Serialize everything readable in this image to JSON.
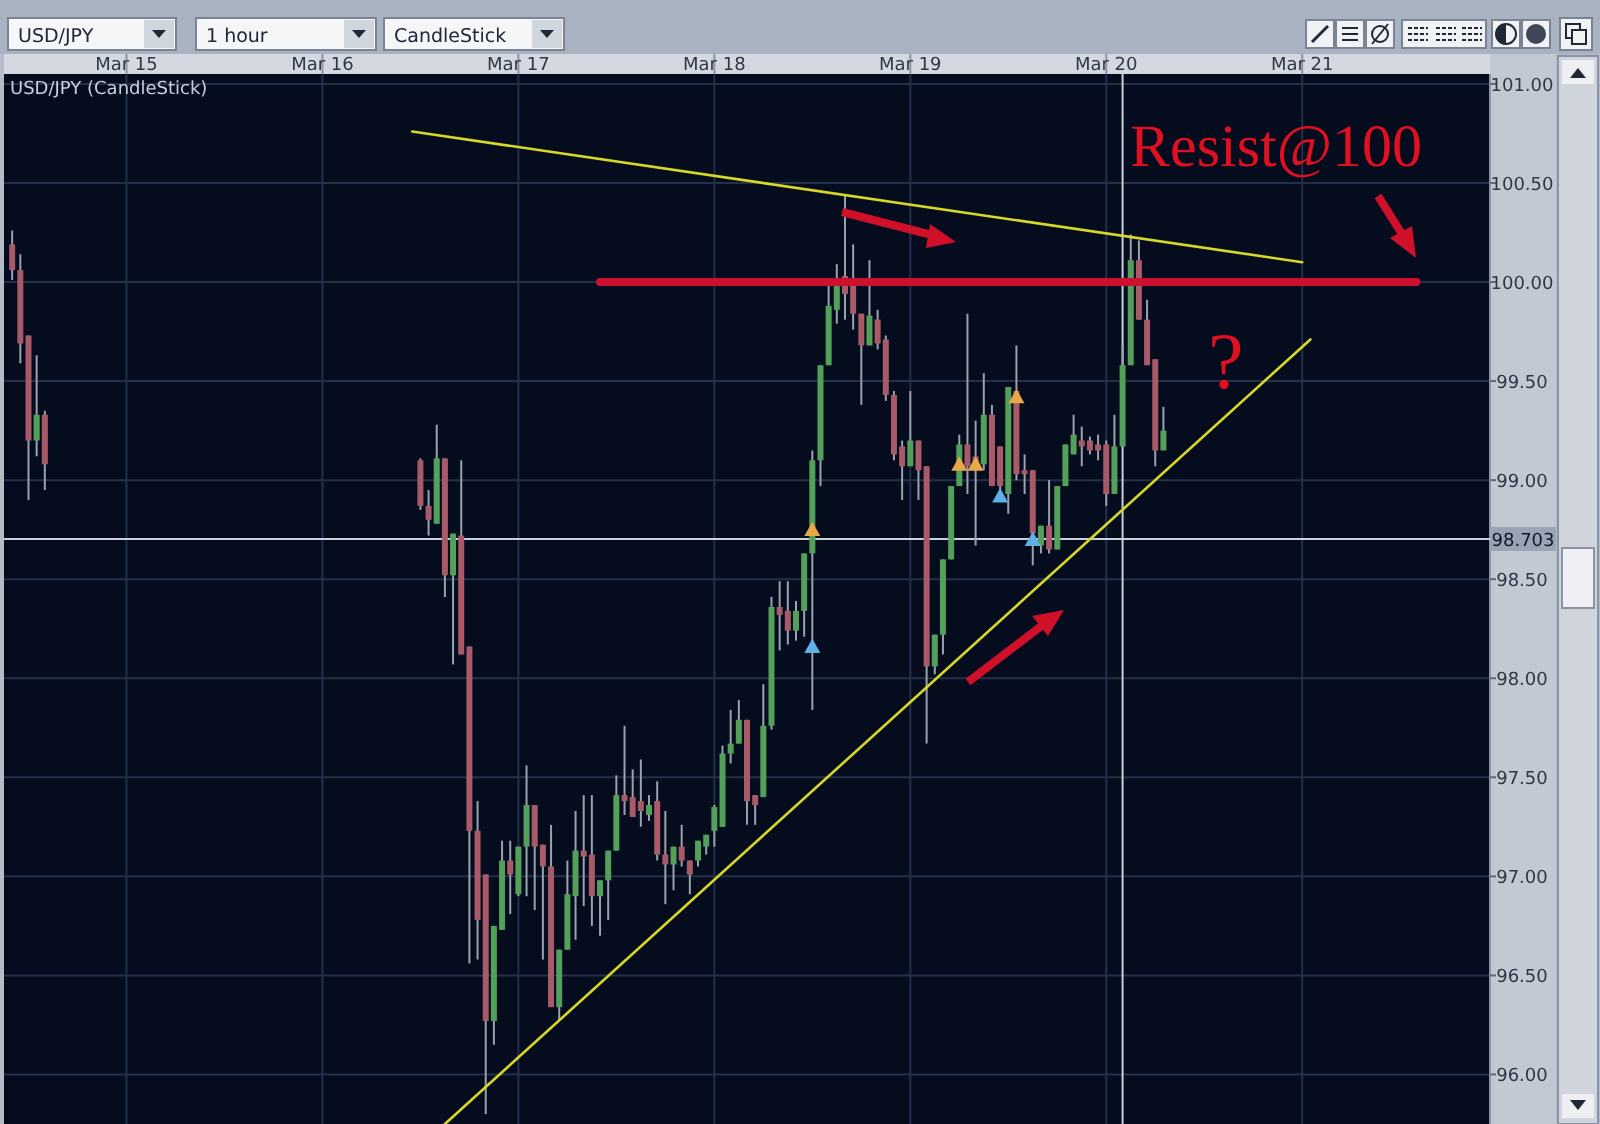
{
  "chart_data": {
    "type": "candlestick",
    "title": "USD/JPY (CandleStick)",
    "x": [
      "--03-14T10:00",
      "--03-14T11:00",
      "--03-14T12:00",
      "--03-14T13:00",
      "--03-14T14:00",
      "--03-16T12:00",
      "--03-16T13:00",
      "--03-16T14:00",
      "--03-16T15:00",
      "--03-16T16:00",
      "--03-16T17:00",
      "--03-16T18:00",
      "--03-16T19:00",
      "--03-16T20:00",
      "--03-16T21:00",
      "--03-16T22:00",
      "--03-16T23:00",
      "--03-17T00:00",
      "--03-17T01:00",
      "--03-17T02:00",
      "--03-17T03:00",
      "--03-17T04:00",
      "--03-17T05:00",
      "--03-17T06:00",
      "--03-17T07:00",
      "--03-17T08:00",
      "--03-17T09:00",
      "--03-17T10:00",
      "--03-17T11:00",
      "--03-17T12:00",
      "--03-17T13:00",
      "--03-17T14:00",
      "--03-17T15:00",
      "--03-17T16:00",
      "--03-17T17:00",
      "--03-17T18:00",
      "--03-17T19:00",
      "--03-17T20:00",
      "--03-17T21:00",
      "--03-17T22:00",
      "--03-17T23:00",
      "--03-18T00:00",
      "--03-18T01:00",
      "--03-18T02:00",
      "--03-18T03:00",
      "--03-18T04:00",
      "--03-18T05:00",
      "--03-18T06:00",
      "--03-18T07:00",
      "--03-18T08:00",
      "--03-18T09:00",
      "--03-18T10:00",
      "--03-18T11:00",
      "--03-18T12:00",
      "--03-18T13:00",
      "--03-18T14:00",
      "--03-18T15:00",
      "--03-18T16:00",
      "--03-18T17:00",
      "--03-18T18:00",
      "--03-18T19:00",
      "--03-18T20:00",
      "--03-18T21:00",
      "--03-18T22:00",
      "--03-18T23:00",
      "--03-19T00:00",
      "--03-19T01:00",
      "--03-19T02:00",
      "--03-19T03:00",
      "--03-19T04:00",
      "--03-19T05:00",
      "--03-19T06:00",
      "--03-19T07:00",
      "--03-19T08:00",
      "--03-19T09:00",
      "--03-19T10:00",
      "--03-19T11:00",
      "--03-19T12:00",
      "--03-19T13:00",
      "--03-19T14:00",
      "--03-19T15:00",
      "--03-19T16:00",
      "--03-19T17:00",
      "--03-19T18:00",
      "--03-19T19:00",
      "--03-19T20:00",
      "--03-19T21:00",
      "--03-19T22:00",
      "--03-19T23:00",
      "--03-20T00:00",
      "--03-20T01:00",
      "--03-20T02:00",
      "--03-20T03:00",
      "--03-20T04:00",
      "--03-20T05:00",
      "--03-20T06:00",
      "--03-20T07:00"
    ],
    "ohlc": [
      [
        100.19,
        100.26,
        100.01,
        100.06
      ],
      [
        100.06,
        100.14,
        99.59,
        99.69
      ],
      [
        99.73,
        99.73,
        98.9,
        99.2
      ],
      [
        99.2,
        99.63,
        99.12,
        99.33
      ],
      [
        99.33,
        99.35,
        98.95,
        99.08
      ],
      [
        99.1,
        99.11,
        98.85,
        98.87
      ],
      [
        98.87,
        98.95,
        98.72,
        98.8
      ],
      [
        98.78,
        99.28,
        98.78,
        99.11
      ],
      [
        99.11,
        99.11,
        98.41,
        98.52
      ],
      [
        98.52,
        98.73,
        98.07,
        98.73
      ],
      [
        98.72,
        99.1,
        98.12,
        98.12
      ],
      [
        98.16,
        98.16,
        96.56,
        97.23
      ],
      [
        97.23,
        97.38,
        96.58,
        96.78
      ],
      [
        97.01,
        97.01,
        95.8,
        96.27
      ],
      [
        96.27,
        96.75,
        96.15,
        96.75
      ],
      [
        96.73,
        97.18,
        96.73,
        97.08
      ],
      [
        97.08,
        97.18,
        96.81,
        97.01
      ],
      [
        96.91,
        97.15,
        96.9,
        97.15
      ],
      [
        97.15,
        97.56,
        96.9,
        97.36
      ],
      [
        97.36,
        97.36,
        96.83,
        97.15
      ],
      [
        97.16,
        97.16,
        96.58,
        97.05
      ],
      [
        97.05,
        97.26,
        96.34,
        96.34
      ],
      [
        96.34,
        96.63,
        96.27,
        96.63
      ],
      [
        96.63,
        97.08,
        96.63,
        96.91
      ],
      [
        96.9,
        97.33,
        96.68,
        97.13
      ],
      [
        97.13,
        97.41,
        96.85,
        97.1
      ],
      [
        97.11,
        97.41,
        96.75,
        96.9
      ],
      [
        96.9,
        96.98,
        96.7,
        96.98
      ],
      [
        96.98,
        97.13,
        96.78,
        97.13
      ],
      [
        97.13,
        97.51,
        97.13,
        97.41
      ],
      [
        97.41,
        97.76,
        97.31,
        97.38
      ],
      [
        97.4,
        97.54,
        97.3,
        97.3
      ],
      [
        97.38,
        97.59,
        97.25,
        97.33
      ],
      [
        97.31,
        97.41,
        97.28,
        97.36
      ],
      [
        97.38,
        97.48,
        97.08,
        97.11
      ],
      [
        97.11,
        97.33,
        96.86,
        97.06
      ],
      [
        97.06,
        97.15,
        96.93,
        97.15
      ],
      [
        97.15,
        97.26,
        97.05,
        97.08
      ],
      [
        97.08,
        97.08,
        96.91,
        97.01
      ],
      [
        97.08,
        97.18,
        97.05,
        97.18
      ],
      [
        97.15,
        97.21,
        97.11,
        97.21
      ],
      [
        97.23,
        97.36,
        97.15,
        97.35
      ],
      [
        97.25,
        97.66,
        97.25,
        97.62
      ],
      [
        97.62,
        97.84,
        97.57,
        97.67
      ],
      [
        97.67,
        97.89,
        97.67,
        97.79
      ],
      [
        97.79,
        97.79,
        97.26,
        97.38
      ],
      [
        97.41,
        97.41,
        97.26,
        97.36
      ],
      [
        97.4,
        97.97,
        97.4,
        97.76
      ],
      [
        97.76,
        98.41,
        97.74,
        98.36
      ],
      [
        98.36,
        98.49,
        98.14,
        98.32
      ],
      [
        98.34,
        98.49,
        98.17,
        98.24
      ],
      [
        98.24,
        98.39,
        98.19,
        98.34
      ],
      [
        98.34,
        98.63,
        98.21,
        98.63
      ],
      [
        98.63,
        99.15,
        97.84,
        99.1
      ],
      [
        99.1,
        99.58,
        98.97,
        99.58
      ],
      [
        99.58,
        99.98,
        99.58,
        99.88
      ],
      [
        99.86,
        100.09,
        99.79,
        99.99
      ],
      [
        100.03,
        100.44,
        99.81,
        99.94
      ],
      [
        99.99,
        100.19,
        99.76,
        99.84
      ],
      [
        99.84,
        99.84,
        99.38,
        99.68
      ],
      [
        99.68,
        100.11,
        99.68,
        99.83
      ],
      [
        99.81,
        99.86,
        99.66,
        99.69
      ],
      [
        99.71,
        99.73,
        99.4,
        99.43
      ],
      [
        99.43,
        99.45,
        99.1,
        99.13
      ],
      [
        99.17,
        99.2,
        98.9,
        99.07
      ],
      [
        99.07,
        99.45,
        99.07,
        99.2
      ],
      [
        99.2,
        99.2,
        98.9,
        99.05
      ],
      [
        99.07,
        99.07,
        97.67,
        98.06
      ],
      [
        98.06,
        98.22,
        98.02,
        98.22
      ],
      [
        98.22,
        98.6,
        98.12,
        98.6
      ],
      [
        98.6,
        98.97,
        98.6,
        98.97
      ],
      [
        98.97,
        99.23,
        98.97,
        99.18
      ],
      [
        99.18,
        99.84,
        98.93,
        99.07
      ],
      [
        99.12,
        99.3,
        98.67,
        99.07
      ],
      [
        99.08,
        99.54,
        99.05,
        99.33
      ],
      [
        99.33,
        99.38,
        98.97,
        98.97
      ],
      [
        99.17,
        99.17,
        98.93,
        98.97
      ],
      [
        98.93,
        99.47,
        98.83,
        99.47
      ],
      [
        99.45,
        99.68,
        99.0,
        99.03
      ],
      [
        99.05,
        99.13,
        98.93,
        99.03
      ],
      [
        99.05,
        99.05,
        98.57,
        98.73
      ],
      [
        98.67,
        98.77,
        98.63,
        98.77
      ],
      [
        98.77,
        99.0,
        98.63,
        98.65
      ],
      [
        98.65,
        98.97,
        98.65,
        98.97
      ],
      [
        98.97,
        99.18,
        98.97,
        99.18
      ],
      [
        99.13,
        99.33,
        99.13,
        99.23
      ],
      [
        99.2,
        99.27,
        99.07,
        99.17
      ],
      [
        99.2,
        99.22,
        99.13,
        99.15
      ],
      [
        99.18,
        99.23,
        99.1,
        99.15
      ],
      [
        99.18,
        99.2,
        98.87,
        98.93
      ],
      [
        98.93,
        99.33,
        98.93,
        99.17
      ],
      [
        99.17,
        99.68,
        99.17,
        99.58
      ],
      [
        99.58,
        100.24,
        99.58,
        100.11
      ],
      [
        100.11,
        100.21,
        99.81,
        99.81
      ],
      [
        99.81,
        99.91,
        99.58,
        99.58
      ],
      [
        99.61,
        99.61,
        99.07,
        99.15
      ],
      [
        99.15,
        99.37,
        99.15,
        99.25
      ]
    ],
    "colors": [
      "#a85a68",
      "#a85a68",
      "#a85a68",
      "#52a05a",
      "#a85a68",
      "#a85a68",
      "#a85a68",
      "#52a05a",
      "#a85a68",
      "#52a05a",
      "#a85a68",
      "#a85a68",
      "#a85a68",
      "#a85a68",
      "#52a05a",
      "#52a05a",
      "#a85a68",
      "#52a05a",
      "#52a05a",
      "#a85a68",
      "#a85a68",
      "#a85a68",
      "#52a05a",
      "#52a05a",
      "#52a05a",
      "#a85a68",
      "#a85a68",
      "#52a05a",
      "#52a05a",
      "#52a05a",
      "#a85a68",
      "#a85a68",
      "#a85a68",
      "#52a05a",
      "#a85a68",
      "#a85a68",
      "#52a05a",
      "#a85a68",
      "#a85a68",
      "#52a05a",
      "#52a05a",
      "#52a05a",
      "#52a05a",
      "#52a05a",
      "#52a05a",
      "#a85a68",
      "#a85a68",
      "#52a05a",
      "#52a05a",
      "#a85a68",
      "#a85a68",
      "#52a05a",
      "#52a05a",
      "#52a05a",
      "#52a05a",
      "#52a05a",
      "#52a05a",
      "#a85a68",
      "#a85a68",
      "#a85a68",
      "#52a05a",
      "#a85a68",
      "#a85a68",
      "#a85a68",
      "#a85a68",
      "#52a05a",
      "#a85a68",
      "#a85a68",
      "#52a05a",
      "#52a05a",
      "#52a05a",
      "#52a05a",
      "#a85a68",
      "#a85a68",
      "#52a05a",
      "#a85a68",
      "#a85a68",
      "#52a05a",
      "#a85a68",
      "#a85a68",
      "#a85a68",
      "#52a05a",
      "#a85a68",
      "#52a05a",
      "#52a05a",
      "#52a05a",
      "#a85a68",
      "#a85a68",
      "#a85a68",
      "#a85a68",
      "#52a05a",
      "#52a05a",
      "#52a05a",
      "#a85a68",
      "#a85a68",
      "#a85a68",
      "#52a05a"
    ],
    "series": [
      {
        "type": "line",
        "x": [
          "--03-16T11:00",
          "--03-21T00:00"
        ],
        "values": [
          100.76,
          100.1
        ],
        "color": "#d8d826"
      },
      {
        "type": "line",
        "x": [
          "--03-16T15:00",
          "--03-21T01:00"
        ],
        "values": [
          95.75,
          99.71
        ],
        "color": "#d8d826"
      },
      {
        "type": "line",
        "x": [
          "--03-17T10:00",
          "--03-21T14:00"
        ],
        "values": [
          100,
          100
        ],
        "color": "#cc1030"
      },
      {
        "type": "scatter",
        "marker": "triangle",
        "color": "#e8a848",
        "x": [
          "--03-18T12:00",
          "--03-19T06:00",
          "--03-19T08:00",
          "--03-19T13:00"
        ],
        "values": [
          98.75,
          99.08,
          99.08,
          99.42
        ]
      },
      {
        "type": "scatter",
        "marker": "triangle",
        "color": "#60b0e8",
        "x": [
          "--03-18T12:00",
          "--03-19T11:00",
          "--03-19T15:00"
        ],
        "values": [
          98.16,
          98.92,
          98.7
        ]
      }
    ],
    "xlim": [
      "--03-14T09:00",
      "--03-21T23:00"
    ],
    "xticks": [
      {
        "value": "--03-15",
        "label": "Mar 15"
      },
      {
        "value": "--03-16",
        "label": "Mar 16"
      },
      {
        "value": "--03-17",
        "label": "Mar 17"
      },
      {
        "value": "--03-18",
        "label": "Mar 18"
      },
      {
        "value": "--03-19",
        "label": "Mar 19"
      },
      {
        "value": "--03-20",
        "label": "Mar 20"
      },
      {
        "value": "--03-21",
        "label": "Mar 21"
      }
    ],
    "ylim": [
      95.75,
      101.05
    ],
    "yticks": [
      {
        "value": 96,
        "label": "96.00"
      },
      {
        "value": 96.5,
        "label": "96.50"
      },
      {
        "value": 97,
        "label": "97.00"
      },
      {
        "value": 97.5,
        "label": "97.50"
      },
      {
        "value": 98,
        "label": "98.00"
      },
      {
        "value": 98.5,
        "label": "98.50"
      },
      {
        "value": 99,
        "label": "99.00"
      },
      {
        "value": 99.5,
        "label": "99.50"
      },
      {
        "value": 100,
        "label": "100.00"
      },
      {
        "value": 100.5,
        "label": "100.50"
      },
      {
        "value": 101,
        "label": "101.00"
      }
    ],
    "grid": true,
    "ref_lines": [
      {
        "axis": "y",
        "value": 98.703,
        "label": "98.703",
        "color": "#c8d0dc"
      },
      {
        "axis": "x",
        "value": "--03-20T02:00",
        "color": "#c8d0dc"
      }
    ],
    "annotations": [
      "Resist@100",
      "?",
      "USD/JPY",
      "1 hour",
      "CandleStick"
    ]
  }
}
